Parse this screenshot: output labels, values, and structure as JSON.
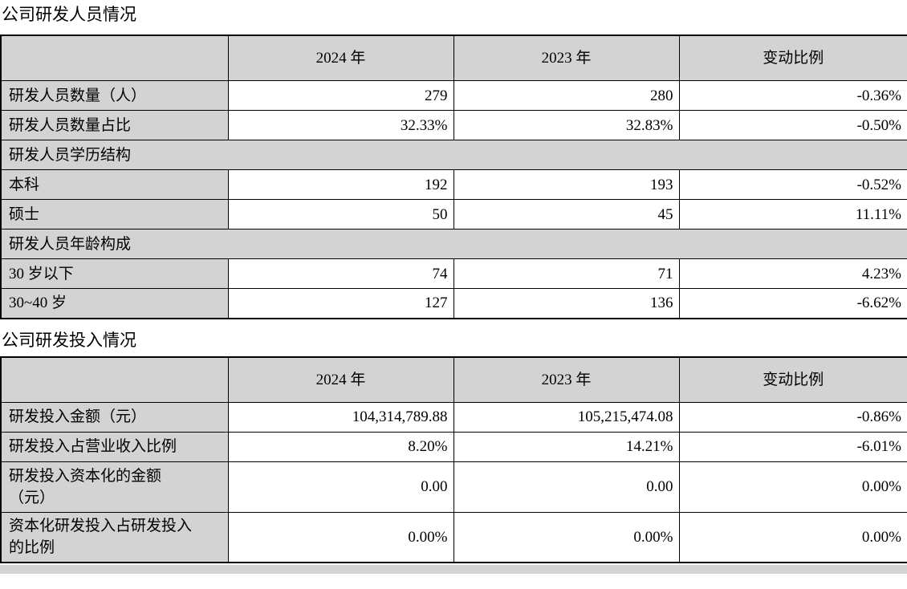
{
  "sections": [
    {
      "title": "公司研发人员情况"
    },
    {
      "title": "公司研发投入情况"
    }
  ],
  "colors": {
    "cell_grey": "#d3d3d3",
    "border": "#000000",
    "background": "#ffffff"
  },
  "personnel_table": {
    "headers": [
      "",
      "2024 年",
      "2023 年",
      "变动比例"
    ],
    "rows": [
      {
        "label": "研发人员数量（人）",
        "y2024": "279",
        "y2023": "280",
        "change": "-0.36%"
      },
      {
        "label": "研发人员数量占比",
        "y2024": "32.33%",
        "y2023": "32.83%",
        "change": "-0.50%"
      },
      {
        "label": "研发人员学历结构",
        "section": true
      },
      {
        "label": "本科",
        "y2024": "192",
        "y2023": "193",
        "change": "-0.52%"
      },
      {
        "label": "硕士",
        "y2024": "50",
        "y2023": "45",
        "change": "11.11%"
      },
      {
        "label": "研发人员年龄构成",
        "section": true
      },
      {
        "label": "30 岁以下",
        "y2024": "74",
        "y2023": "71",
        "change": "4.23%"
      },
      {
        "label": "30~40 岁",
        "y2024": "127",
        "y2023": "136",
        "change": "-6.62%"
      }
    ]
  },
  "investment_table": {
    "headers": [
      "",
      "2024 年",
      "2023 年",
      "变动比例"
    ],
    "rows": [
      {
        "label": "研发投入金额（元）",
        "y2024": "104,314,789.88",
        "y2023": "105,215,474.08",
        "change": "-0.86%"
      },
      {
        "label": "研发投入占营业收入比例",
        "y2024": "8.20%",
        "y2023": "14.21%",
        "change": "-6.01%"
      },
      {
        "label": "研发投入资本化的金额\n（元）",
        "y2024": "0.00",
        "y2023": "0.00",
        "change": "0.00%"
      },
      {
        "label": "资本化研发投入占研发投入\n的比例",
        "y2024": "0.00%",
        "y2023": "0.00%",
        "change": "0.00%"
      }
    ]
  }
}
